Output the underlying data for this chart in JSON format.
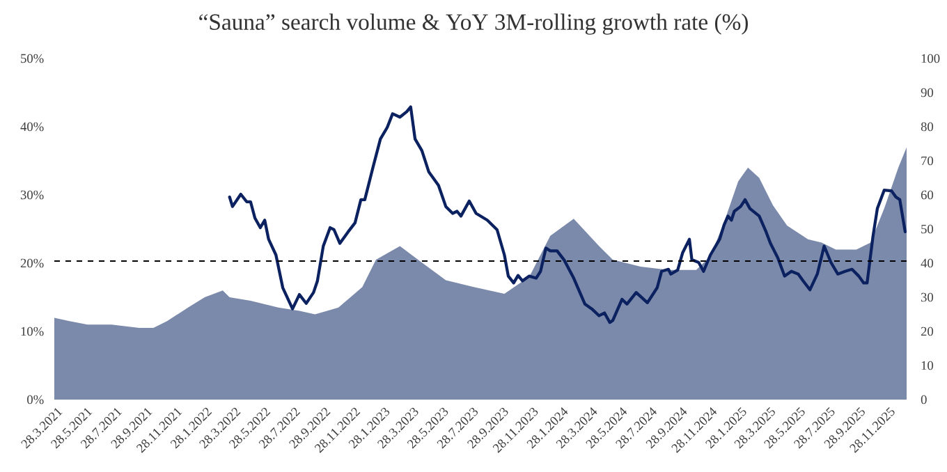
{
  "chart_data": {
    "type": "line",
    "title": "“Sauna” search volume & YoY 3M-rolling growth rate (%)",
    "xlim": [
      "2021-03-28",
      "2026-01-07"
    ],
    "xticks": [
      {
        "value": "2021-03-28",
        "label": "28.3.2021"
      },
      {
        "value": "2021-05-28",
        "label": "28.5.2021"
      },
      {
        "value": "2021-07-28",
        "label": "28.7.2021"
      },
      {
        "value": "2021-09-28",
        "label": "28.9.2021"
      },
      {
        "value": "2021-11-28",
        "label": "28.11.2021"
      },
      {
        "value": "2022-01-28",
        "label": "28.1.2022"
      },
      {
        "value": "2022-03-28",
        "label": "28.3.2022"
      },
      {
        "value": "2022-05-28",
        "label": "28.5.2022"
      },
      {
        "value": "2022-07-28",
        "label": "28.7.2022"
      },
      {
        "value": "2022-09-28",
        "label": "28.9.2022"
      },
      {
        "value": "2022-11-28",
        "label": "28.11.2022"
      },
      {
        "value": "2023-01-28",
        "label": "28.1.2023"
      },
      {
        "value": "2023-03-28",
        "label": "28.3.2023"
      },
      {
        "value": "2023-05-28",
        "label": "28.5.2023"
      },
      {
        "value": "2023-07-28",
        "label": "28.7.2023"
      },
      {
        "value": "2023-09-28",
        "label": "28.9.2023"
      },
      {
        "value": "2023-11-28",
        "label": "28.11.2023"
      },
      {
        "value": "2024-01-28",
        "label": "28.1.2024"
      },
      {
        "value": "2024-03-28",
        "label": "28.3.2024"
      },
      {
        "value": "2024-05-28",
        "label": "28.5.2024"
      },
      {
        "value": "2024-07-28",
        "label": "28.7.2024"
      },
      {
        "value": "2024-09-28",
        "label": "28.9.2024"
      },
      {
        "value": "2024-11-28",
        "label": "28.11.2024"
      },
      {
        "value": "2025-01-28",
        "label": "28.1.2025"
      },
      {
        "value": "2025-03-28",
        "label": "28.3.2025"
      },
      {
        "value": "2025-05-28",
        "label": "28.5.2025"
      },
      {
        "value": "2025-07-28",
        "label": "28.7.2025"
      },
      {
        "value": "2025-09-28",
        "label": "28.9.2025"
      },
      {
        "value": "2025-11-28",
        "label": "28.11.2025"
      }
    ],
    "ylim": [
      0,
      50
    ],
    "yticks": [
      {
        "value": 0,
        "label": "0%"
      },
      {
        "value": 10,
        "label": "10%"
      },
      {
        "value": 20,
        "label": "20%"
      },
      {
        "value": 30,
        "label": "30%"
      },
      {
        "value": 40,
        "label": "40%"
      },
      {
        "value": 50,
        "label": "50%"
      }
    ],
    "y2lim": [
      0,
      100
    ],
    "y2ticks": [
      0,
      10,
      20,
      30,
      40,
      50,
      60,
      70,
      80,
      90,
      100
    ],
    "series": [
      {
        "type": "area",
        "axis": "y2",
        "color": "#7b8aab",
        "x": [
          "2021-03-28",
          "2021-04-28",
          "2021-06-04",
          "2021-07-23",
          "2021-09-18",
          "2021-10-17",
          "2021-11-14",
          "2021-12-27",
          "2022-01-30",
          "2022-03-08",
          "2022-03-22",
          "2022-05-04",
          "2022-06-30",
          "2022-08-12",
          "2022-09-13",
          "2022-10-08",
          "2022-10-31",
          "2022-12-19",
          "2023-01-16",
          "2023-03-06",
          "2023-04-12",
          "2023-06-08",
          "2023-08-04",
          "2023-10-06",
          "2023-11-26",
          "2024-01-08",
          "2024-02-25",
          "2024-04-17",
          "2024-05-15",
          "2024-07-11",
          "2024-09-06",
          "2024-11-02",
          "2024-12-01",
          "2024-12-29",
          "2025-01-27",
          "2025-02-16",
          "2025-03-11",
          "2025-04-08",
          "2025-05-07",
          "2025-06-19",
          "2025-07-17",
          "2025-08-15",
          "2025-09-26",
          "2025-10-25",
          "2025-11-22",
          "2025-12-21",
          "2026-01-07"
        ],
        "values": [
          24,
          23,
          22,
          22,
          21,
          21,
          23,
          27,
          30,
          32,
          30,
          29,
          27,
          26,
          25,
          26,
          27,
          33,
          41,
          45,
          41,
          35,
          33,
          31,
          36,
          48,
          53,
          45,
          41,
          39,
          38,
          38,
          42,
          52,
          64,
          68,
          65,
          57,
          51,
          47,
          46,
          44,
          44,
          46,
          56,
          68,
          74
        ]
      },
      {
        "color": "#0b2160",
        "x": [
          "2022-03-22",
          "2022-03-28",
          "2022-04-14",
          "2022-04-26",
          "2022-05-04",
          "2022-05-13",
          "2022-05-24",
          "2022-06-02",
          "2022-06-10",
          "2022-06-25",
          "2022-07-09",
          "2022-07-29",
          "2022-08-12",
          "2022-08-26",
          "2022-09-10",
          "2022-09-18",
          "2022-09-30",
          "2022-10-14",
          "2022-10-22",
          "2022-11-03",
          "2022-11-20",
          "2022-12-04",
          "2022-12-16",
          "2022-12-24",
          "2023-01-10",
          "2023-01-25",
          "2023-02-08",
          "2023-02-19",
          "2023-03-06",
          "2023-03-20",
          "2023-03-28",
          "2023-04-06",
          "2023-04-20",
          "2023-05-04",
          "2023-05-24",
          "2023-06-08",
          "2023-06-22",
          "2023-07-01",
          "2023-07-09",
          "2023-07-26",
          "2023-08-09",
          "2023-09-01",
          "2023-09-21",
          "2023-10-06",
          "2023-10-14",
          "2023-10-25",
          "2023-11-03",
          "2023-11-12",
          "2023-11-26",
          "2023-12-10",
          "2023-12-19",
          "2023-12-30",
          "2024-01-08",
          "2024-01-22",
          "2024-02-05",
          "2024-02-25",
          "2024-03-19",
          "2024-04-02",
          "2024-04-17",
          "2024-04-28",
          "2024-05-09",
          "2024-05-15",
          "2024-06-03",
          "2024-06-13",
          "2024-07-02",
          "2024-07-25",
          "2024-08-14",
          "2024-08-23",
          "2024-09-06",
          "2024-09-11",
          "2024-09-25",
          "2024-10-05",
          "2024-10-19",
          "2024-10-24",
          "2024-11-07",
          "2024-11-17",
          "2024-12-01",
          "2024-12-20",
          "2024-12-29",
          "2025-01-06",
          "2025-01-13",
          "2025-01-19",
          "2025-02-01",
          "2025-02-10",
          "2025-02-20",
          "2025-03-11",
          "2025-03-25",
          "2025-04-03",
          "2025-04-18",
          "2025-05-02",
          "2025-05-16",
          "2025-05-30",
          "2025-06-09",
          "2025-06-23",
          "2025-07-08",
          "2025-07-22",
          "2025-08-05",
          "2025-08-19",
          "2025-09-03",
          "2025-09-17",
          "2025-10-01",
          "2025-10-11",
          "2025-10-18",
          "2025-10-30",
          "2025-11-08",
          "2025-11-22",
          "2025-12-07",
          "2025-12-16",
          "2025-12-24",
          "2026-01-04"
        ],
        "values": [
          29.7,
          28.3,
          30.1,
          29.0,
          29.0,
          26.6,
          25.2,
          26.3,
          23.5,
          21.2,
          16.4,
          13.3,
          15.4,
          14.1,
          15.7,
          17.4,
          22.5,
          25.2,
          24.9,
          22.9,
          24.6,
          25.9,
          29.3,
          29.3,
          34.1,
          38.2,
          39.9,
          41.9,
          41.4,
          42.2,
          42.9,
          38.2,
          36.5,
          33.4,
          31.4,
          28.3,
          27.3,
          27.6,
          26.9,
          29.1,
          27.3,
          26.3,
          24.9,
          21.2,
          18.1,
          17.1,
          18.2,
          17.4,
          18.1,
          17.8,
          18.8,
          22.2,
          21.8,
          21.8,
          20.5,
          17.8,
          14.0,
          13.3,
          12.3,
          12.7,
          11.3,
          11.6,
          14.7,
          14.0,
          15.7,
          14.2,
          16.4,
          18.8,
          19.1,
          18.4,
          19.0,
          21.5,
          23.5,
          20.5,
          20.1,
          18.8,
          21.2,
          23.5,
          25.6,
          26.9,
          26.3,
          27.6,
          28.3,
          29.3,
          28.0,
          26.9,
          24.6,
          22.9,
          20.8,
          18.1,
          18.8,
          18.4,
          17.4,
          16.1,
          18.4,
          22.5,
          20.1,
          18.4,
          18.8,
          19.1,
          18.1,
          17.1,
          17.1,
          23.9,
          28.0,
          30.7,
          30.6,
          29.7,
          29.3,
          24.6
        ]
      }
    ],
    "ref_lines": [
      {
        "axis": "y",
        "value": 20.3,
        "color": "#000000",
        "line_style": "dashed"
      }
    ]
  }
}
